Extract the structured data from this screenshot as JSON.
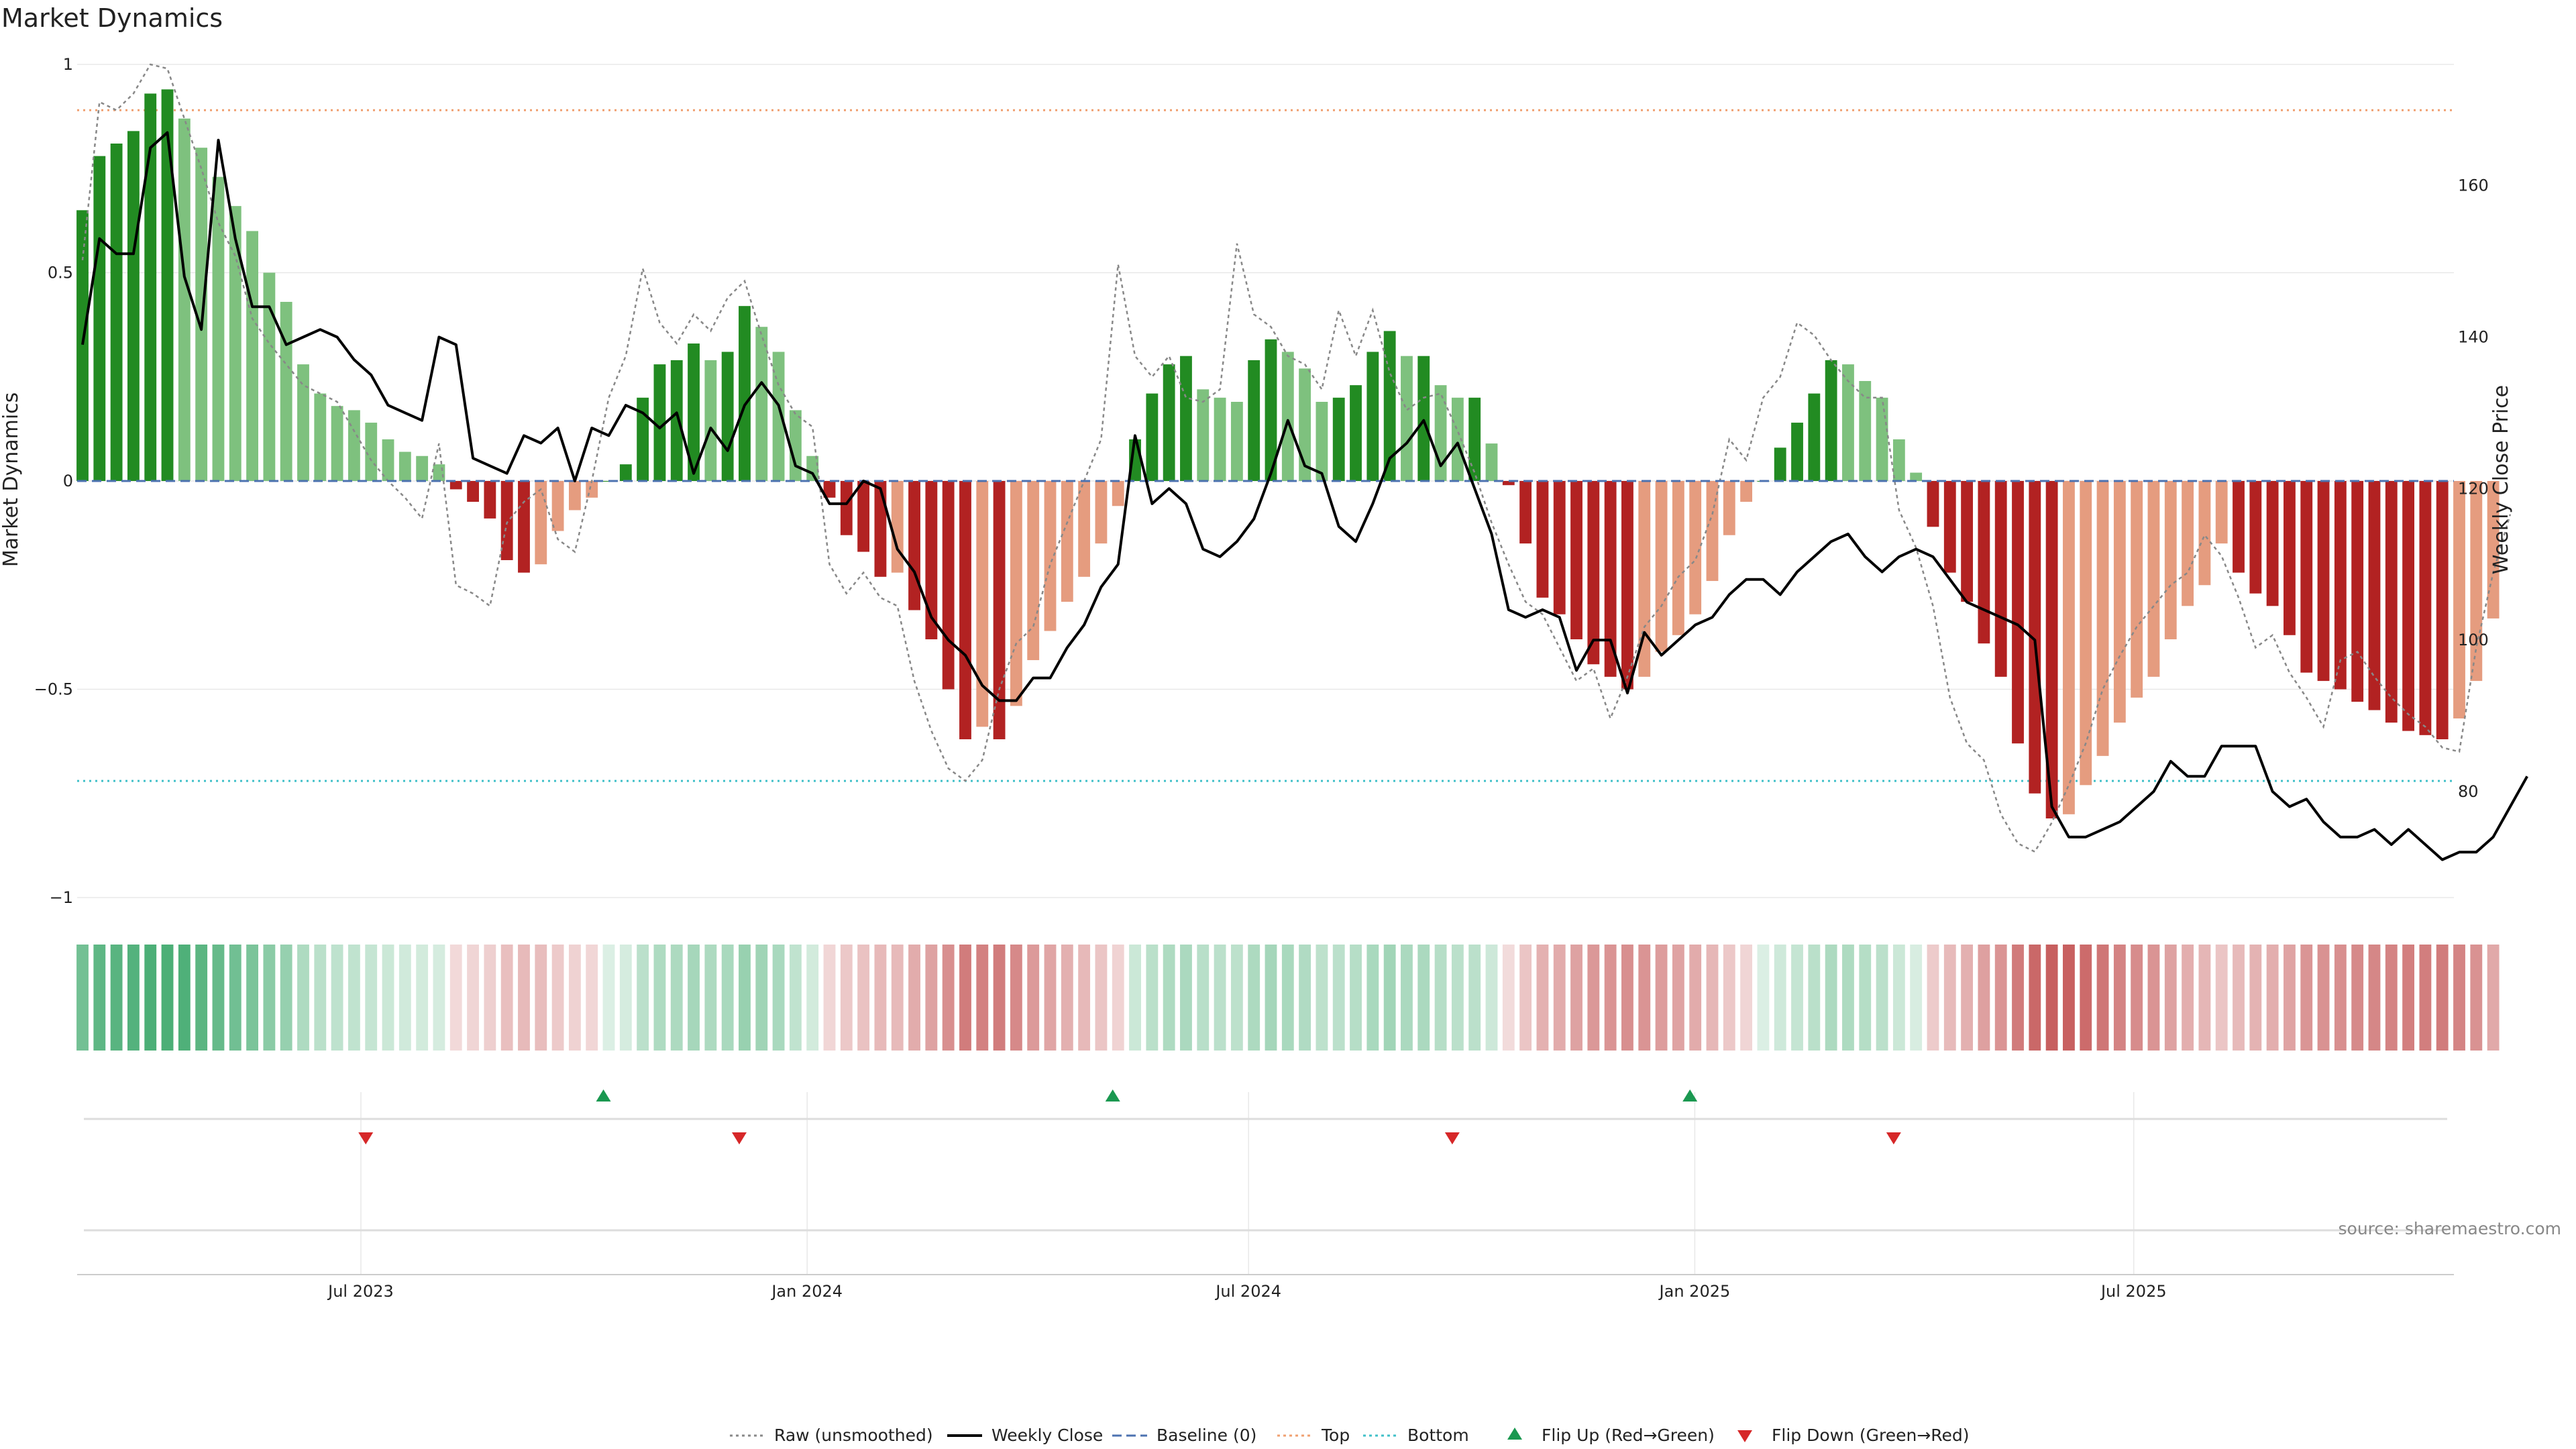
{
  "chart_data": {
    "type": "bar",
    "title": "Market Dynamics",
    "ylabel": "Market Dynamics",
    "y2label": "Weekly Close Price",
    "ylim": [
      -1,
      1
    ],
    "y2lim": [
      66,
      176
    ],
    "yticks": [
      {
        "value": 1,
        "label": "1"
      },
      {
        "value": 0.5,
        "label": "0.5"
      },
      {
        "value": 0,
        "label": "0"
      },
      {
        "value": -0.5,
        "label": "−0.5"
      },
      {
        "value": -1,
        "label": "−1"
      }
    ],
    "y2ticks": [
      {
        "value": 160,
        "label": "160"
      },
      {
        "value": 140,
        "label": "140"
      },
      {
        "value": 120,
        "label": "120"
      },
      {
        "value": 100,
        "label": "100"
      },
      {
        "value": 80,
        "label": "80"
      }
    ],
    "xlim": [
      "2023-03-06",
      "2025-11-10"
    ],
    "xticks": [
      {
        "date": "2023-07-01",
        "label": "Jul 2023"
      },
      {
        "date": "2024-01-01",
        "label": "Jan 2024"
      },
      {
        "date": "2024-07-01",
        "label": "Jul 2024"
      },
      {
        "date": "2025-01-01",
        "label": "Jan 2025"
      },
      {
        "date": "2025-07-01",
        "label": "Jul 2025"
      }
    ],
    "start_week": "2023-03-06",
    "top_line": 0.89,
    "bottom_line": -0.72,
    "baseline": 0,
    "series": [
      {
        "name": "Smoothed",
        "values": [
          0.65,
          0.78,
          0.81,
          0.84,
          0.93,
          0.94,
          0.87,
          0.8,
          0.73,
          0.66,
          0.6,
          0.5,
          0.43,
          0.28,
          0.21,
          0.18,
          0.17,
          0.14,
          0.1,
          0.07,
          0.06,
          0.04,
          -0.02,
          -0.05,
          -0.09,
          -0.19,
          -0.22,
          -0.2,
          -0.12,
          -0.07,
          -0.04,
          0.0,
          0.04,
          0.2,
          0.28,
          0.29,
          0.33,
          0.29,
          0.31,
          0.42,
          0.37,
          0.31,
          0.17,
          0.06,
          -0.04,
          -0.13,
          -0.17,
          -0.23,
          -0.22,
          -0.31,
          -0.38,
          -0.5,
          -0.62,
          -0.59,
          -0.62,
          -0.54,
          -0.43,
          -0.36,
          -0.29,
          -0.23,
          -0.15,
          -0.06,
          0.1,
          0.21,
          0.28,
          0.3,
          0.22,
          0.2,
          0.19,
          0.29,
          0.34,
          0.31,
          0.27,
          0.19,
          0.2,
          0.23,
          0.31,
          0.36,
          0.3,
          0.3,
          0.23,
          0.2,
          0.2,
          0.09,
          -0.01,
          -0.15,
          -0.28,
          -0.32,
          -0.38,
          -0.44,
          -0.47,
          -0.5,
          -0.47,
          -0.41,
          -0.37,
          -0.32,
          -0.24,
          -0.13,
          -0.05,
          0.0,
          0.08,
          0.14,
          0.21,
          0.29,
          0.28,
          0.24,
          0.2,
          0.1,
          0.02,
          -0.11,
          -0.22,
          -0.29,
          -0.39,
          -0.47,
          -0.63,
          -0.75,
          -0.81,
          -0.8,
          -0.73,
          -0.66,
          -0.58,
          -0.52,
          -0.47,
          -0.38,
          -0.3,
          -0.25,
          -0.15,
          -0.22,
          -0.27,
          -0.3,
          -0.37,
          -0.46,
          -0.48,
          -0.5,
          -0.53,
          -0.55,
          -0.58,
          -0.6,
          -0.61,
          -0.62,
          -0.57,
          -0.48,
          -0.33
        ]
      },
      {
        "name": "Raw (unsmoothed)",
        "values": [
          0.53,
          0.91,
          0.89,
          0.93,
          1.0,
          0.99,
          0.87,
          0.75,
          0.62,
          0.54,
          0.39,
          0.33,
          0.28,
          0.23,
          0.21,
          0.19,
          0.12,
          0.05,
          0.0,
          -0.04,
          -0.09,
          0.09,
          -0.25,
          -0.27,
          -0.3,
          -0.1,
          -0.05,
          -0.02,
          -0.14,
          -0.17,
          0.0,
          0.2,
          0.3,
          0.51,
          0.38,
          0.33,
          0.4,
          0.36,
          0.44,
          0.48,
          0.35,
          0.23,
          0.16,
          0.13,
          -0.2,
          -0.27,
          -0.22,
          -0.28,
          -0.3,
          -0.48,
          -0.6,
          -0.69,
          -0.72,
          -0.67,
          -0.5,
          -0.39,
          -0.35,
          -0.2,
          -0.1,
          0.0,
          0.1,
          0.52,
          0.3,
          0.25,
          0.3,
          0.2,
          0.19,
          0.22,
          0.57,
          0.4,
          0.37,
          0.3,
          0.28,
          0.22,
          0.41,
          0.3,
          0.41,
          0.26,
          0.17,
          0.2,
          0.21,
          0.12,
          0.02,
          -0.1,
          -0.2,
          -0.29,
          -0.32,
          -0.4,
          -0.48,
          -0.45,
          -0.57,
          -0.47,
          -0.35,
          -0.3,
          -0.23,
          -0.19,
          -0.08,
          0.1,
          0.05,
          0.2,
          0.25,
          0.38,
          0.35,
          0.29,
          0.24,
          0.2,
          0.2,
          -0.07,
          -0.16,
          -0.3,
          -0.52,
          -0.63,
          -0.67,
          -0.8,
          -0.87,
          -0.89,
          -0.82,
          -0.73,
          -0.63,
          -0.5,
          -0.42,
          -0.35,
          -0.3,
          -0.25,
          -0.22,
          -0.13,
          -0.18,
          -0.28,
          -0.4,
          -0.37,
          -0.46,
          -0.52,
          -0.59,
          -0.43,
          -0.41,
          -0.47,
          -0.52,
          -0.56,
          -0.59,
          -0.64,
          -0.65,
          -0.4,
          -0.22,
          -0.08
        ]
      },
      {
        "name": "Weekly Close",
        "axis": "right",
        "values": [
          139,
          153,
          151,
          151,
          165,
          167,
          148,
          141,
          166,
          153,
          144,
          144,
          139,
          140,
          141,
          140,
          137,
          135,
          131,
          130,
          129,
          140,
          139,
          124,
          123,
          122,
          127,
          126,
          128,
          121,
          128,
          127,
          131,
          130,
          128,
          130,
          122,
          128,
          125,
          131,
          134,
          131,
          123,
          122,
          118,
          118,
          121,
          120,
          112,
          109,
          103,
          100,
          98,
          94,
          92,
          92,
          95,
          95,
          99,
          102,
          107,
          110,
          127,
          118,
          120,
          118,
          112,
          111,
          113,
          116,
          122,
          129,
          123,
          122,
          115,
          113,
          118,
          124,
          126,
          129,
          123,
          126,
          120,
          114,
          104,
          103,
          104,
          103,
          96,
          100,
          100,
          93,
          101,
          98,
          100,
          102,
          103,
          106,
          108,
          108,
          106,
          109,
          111,
          113,
          114,
          111,
          109,
          111,
          112,
          111,
          108,
          105,
          104,
          103,
          102,
          100,
          78,
          74,
          74,
          75,
          76,
          78,
          80,
          84,
          82,
          82,
          86,
          86,
          86,
          80,
          78,
          79,
          76,
          74,
          74,
          75,
          73,
          75,
          73,
          71,
          72,
          72,
          74,
          78,
          82
        ]
      }
    ],
    "flip_up_dates": [
      "2023-10-09",
      "2024-05-06",
      "2024-12-30"
    ],
    "flip_down_dates": [
      "2023-07-03",
      "2023-12-04",
      "2024-09-23",
      "2025-03-24"
    ],
    "colors": {
      "strong_green": "#228b22",
      "light_green": "#7ec17e",
      "strong_red": "#b22222",
      "light_red": "#e59c7f",
      "raw_line": "#888888",
      "close_line": "#000000",
      "baseline": "#4c72b0",
      "top_line": "#f0a070",
      "bottom_line": "#40c0c8",
      "flip_up": "#1a9850",
      "flip_down": "#d62728",
      "grid": "#e8e8e8"
    },
    "legend": {
      "position": "bottom-center",
      "items": [
        {
          "label": "Raw (unsmoothed)",
          "style": "dotted-line",
          "color": "#888888"
        },
        {
          "label": "Weekly Close",
          "style": "solid-line",
          "color": "#000000"
        },
        {
          "label": "Baseline (0)",
          "style": "dashed-line",
          "color": "#4c72b0"
        },
        {
          "label": "Top",
          "style": "dotted-line",
          "color": "#f0a070"
        },
        {
          "label": "Bottom",
          "style": "dotted-line",
          "color": "#40c0c8"
        },
        {
          "label": "Flip Up (Red→Green)",
          "style": "up-triangle",
          "color": "#1a9850"
        },
        {
          "label": "Flip Down (Green→Red)",
          "style": "down-triangle",
          "color": "#d62728"
        }
      ]
    },
    "grid": true
  },
  "source": "source: sharemaestro.com"
}
